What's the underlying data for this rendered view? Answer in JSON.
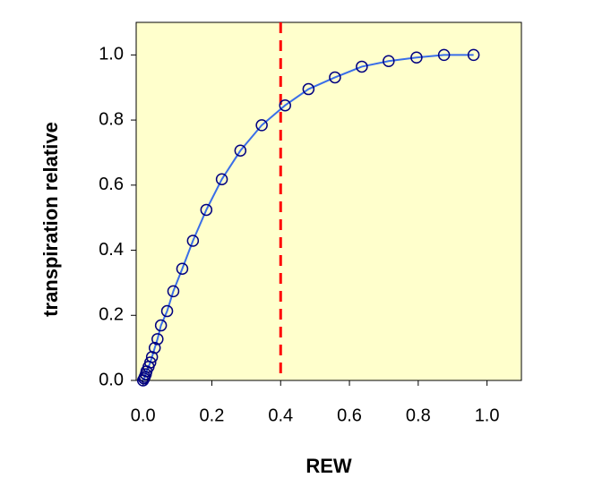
{
  "chart_data": {
    "type": "scatter",
    "x_label": "REW",
    "y_label": "transpiration relative",
    "background": "#ffffcc",
    "xlim": [
      -0.02,
      1.1
    ],
    "ylim": [
      0,
      1.1
    ],
    "xticks": [
      {
        "value": 0,
        "label": "0.0"
      },
      0.2,
      0.4,
      0.6,
      0.8,
      {
        "value": 1,
        "label": "1.0"
      }
    ],
    "yticks": [
      {
        "value": 0,
        "label": "0.0"
      },
      0.2,
      0.4,
      0.6,
      0.8,
      {
        "value": 1,
        "label": "1.0"
      }
    ],
    "series": [
      {
        "marker": "circle",
        "color": "#000080",
        "line_color": "#3a6ee8",
        "x": [
          0.0,
          0.003,
          0.005,
          0.008,
          0.01,
          0.016,
          0.021,
          0.026,
          0.034,
          0.042,
          0.052,
          0.07,
          0.088,
          0.114,
          0.145,
          0.184,
          0.229,
          0.283,
          0.345,
          0.413,
          0.481,
          0.558,
          0.636,
          0.714,
          0.795,
          0.875,
          0.961
        ],
        "values": [
          0.0,
          0.006,
          0.011,
          0.019,
          0.028,
          0.042,
          0.055,
          0.072,
          0.1,
          0.127,
          0.169,
          0.213,
          0.274,
          0.343,
          0.429,
          0.524,
          0.618,
          0.706,
          0.784,
          0.845,
          0.895,
          0.931,
          0.964,
          0.981,
          0.992,
          1.0,
          1.0
        ]
      }
    ],
    "vline": {
      "x": 0.4,
      "color": "#ff0000"
    }
  }
}
